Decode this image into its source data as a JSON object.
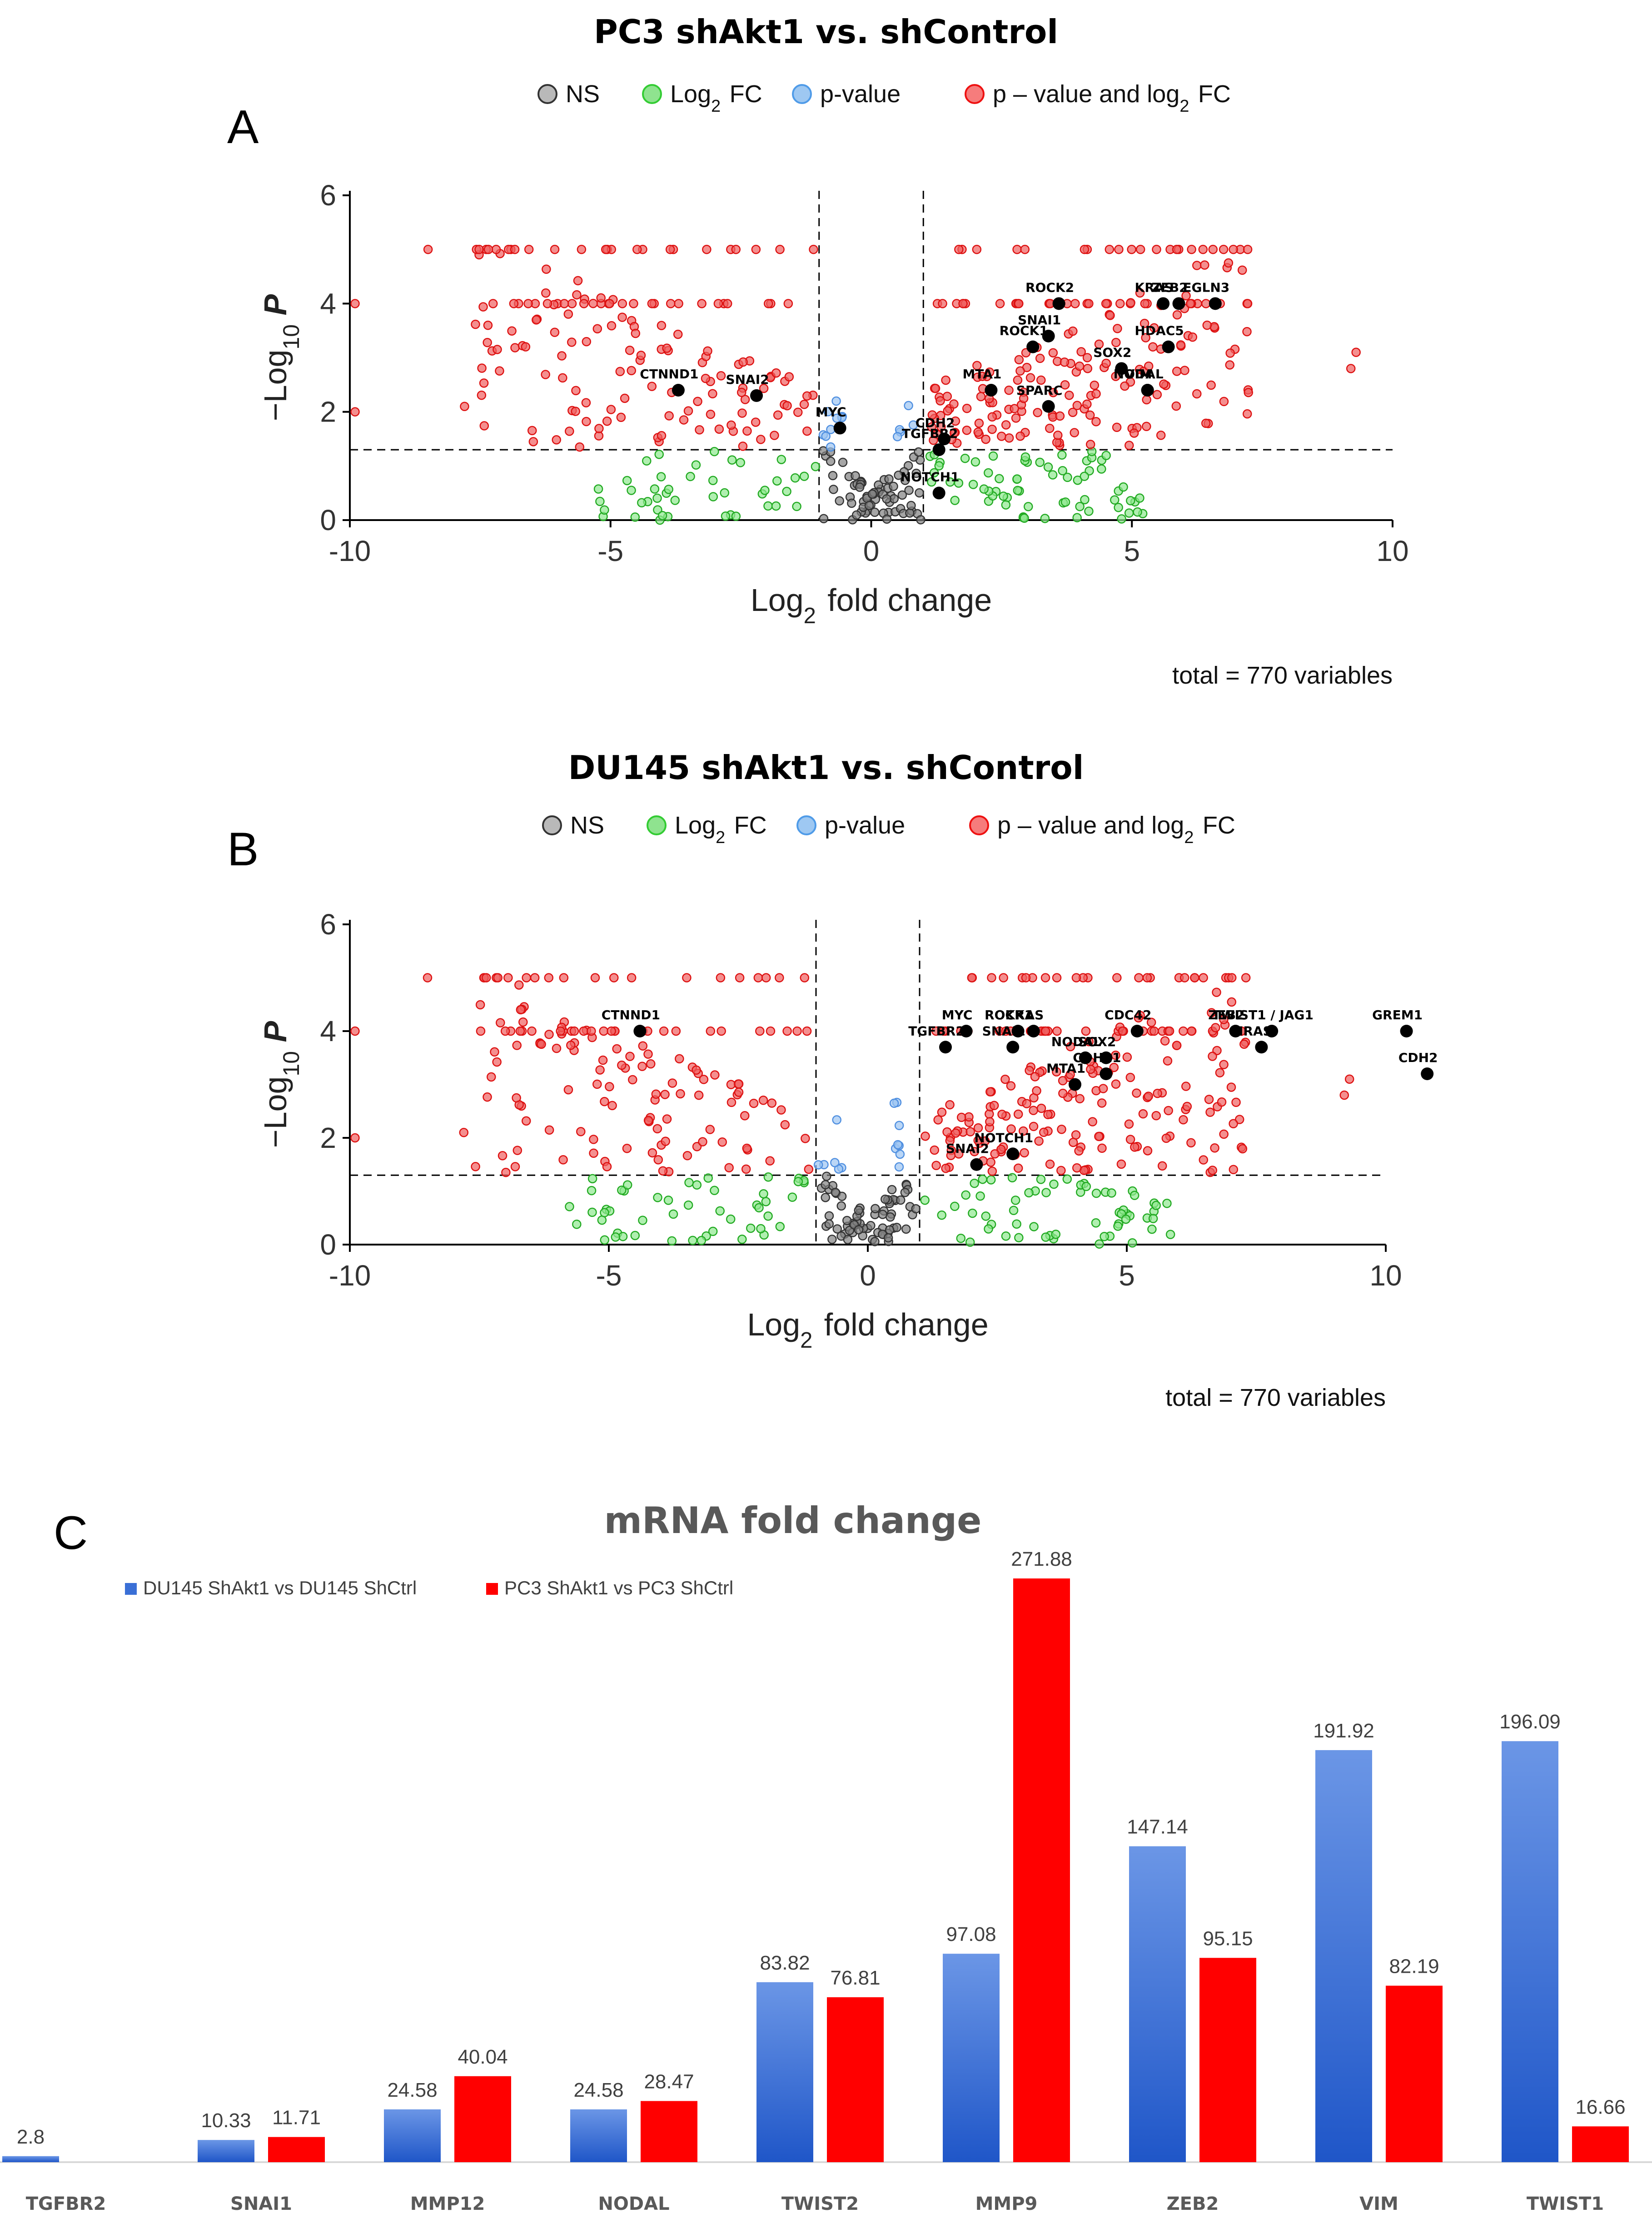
{
  "chart_data": [
    {
      "type": "scatter",
      "panel_label": "A",
      "title": "PC3 shAkt1 vs. shControl",
      "xlabel": "Log2 fold change",
      "ylabel": "-Log10 P",
      "xlim": [
        -10,
        10
      ],
      "ylim": [
        0,
        6
      ],
      "xticks": [
        -10,
        -5,
        0,
        5,
        10
      ],
      "yticks": [
        0,
        2,
        4,
        6
      ],
      "fc_cutoff": 1,
      "p_cutoff": 1.3,
      "legend": {
        "items": [
          {
            "label": "NS",
            "color": "#808080"
          },
          {
            "label": "Log2 FC",
            "color": "#33cc33"
          },
          {
            "label": "p-value",
            "color": "#4f9be8"
          },
          {
            "label": "p – value and log2 FC",
            "color": "#ee1111"
          }
        ]
      },
      "caption": "total = 770 variables",
      "highlighted_genes": [
        {
          "name": "ROCK2",
          "x": 3.6,
          "y": 4.0
        },
        {
          "name": "KRAS",
          "x": 5.6,
          "y": 4.0
        },
        {
          "name": "EGLN3",
          "x": 6.6,
          "y": 4.0
        },
        {
          "name": "ZEB2",
          "x": 5.9,
          "y": 4.0
        },
        {
          "name": "SNAI1",
          "x": 3.4,
          "y": 3.4
        },
        {
          "name": "HDAC5",
          "x": 5.7,
          "y": 3.2
        },
        {
          "name": "ROCK1",
          "x": 3.1,
          "y": 3.2
        },
        {
          "name": "SOX2",
          "x": 4.8,
          "y": 2.8
        },
        {
          "name": "MTA1",
          "x": 2.3,
          "y": 2.4
        },
        {
          "name": "NODAL",
          "x": 5.3,
          "y": 2.4
        },
        {
          "name": "SPARC",
          "x": 3.4,
          "y": 2.1
        },
        {
          "name": "VIM",
          "x": 5.3,
          "y": 2.4
        },
        {
          "name": "SNAI2",
          "x": -2.2,
          "y": 2.3
        },
        {
          "name": "CTNND1",
          "x": -3.7,
          "y": 2.4
        },
        {
          "name": "MYC",
          "x": -0.6,
          "y": 1.7
        },
        {
          "name": "CDH2",
          "x": 1.4,
          "y": 1.5
        },
        {
          "name": "TGFBR2",
          "x": 1.3,
          "y": 1.3
        },
        {
          "name": "NOTCH1",
          "x": 1.3,
          "y": 0.5
        }
      ]
    },
    {
      "type": "scatter",
      "panel_label": "B",
      "title": "DU145 shAkt1 vs. shControl",
      "xlabel": "Log2 fold change",
      "ylabel": "-Log10 P",
      "xlim": [
        -10,
        10
      ],
      "ylim": [
        0,
        6
      ],
      "xticks": [
        -10,
        -5,
        0,
        5,
        10
      ],
      "yticks": [
        0,
        2,
        4,
        6
      ],
      "fc_cutoff": 1,
      "p_cutoff": 1.3,
      "legend": {
        "items": [
          {
            "label": "NS",
            "color": "#808080"
          },
          {
            "label": "Log2 FC",
            "color": "#33cc33"
          },
          {
            "label": "p-value",
            "color": "#4f9be8"
          },
          {
            "label": "p – value and log2 FC",
            "color": "#ee1111"
          }
        ]
      },
      "caption": "total = 770 variables",
      "highlighted_genes": [
        {
          "name": "CTNND1",
          "x": -4.4,
          "y": 4.0
        },
        {
          "name": "MYC",
          "x": 1.9,
          "y": 4.0
        },
        {
          "name": "ROCK1",
          "x": 2.9,
          "y": 4.0
        },
        {
          "name": "KRAS",
          "x": 3.2,
          "y": 4.0
        },
        {
          "name": "CDC42",
          "x": 5.2,
          "y": 4.0
        },
        {
          "name": "TWIST1 / JAG1",
          "x": 7.8,
          "y": 4.0
        },
        {
          "name": "GREM1",
          "x": 10.4,
          "y": 4.0
        },
        {
          "name": "TGFBR2",
          "x": 1.5,
          "y": 3.7
        },
        {
          "name": "SNAI1",
          "x": 2.8,
          "y": 3.7
        },
        {
          "name": "NODAL",
          "x": 4.2,
          "y": 3.5
        },
        {
          "name": "ZEB2",
          "x": 7.1,
          "y": 4.0
        },
        {
          "name": "SOX2",
          "x": 4.6,
          "y": 3.5
        },
        {
          "name": "HRAS",
          "x": 7.6,
          "y": 3.7
        },
        {
          "name": "CDH2",
          "x": 10.8,
          "y": 3.2
        },
        {
          "name": "CDH11",
          "x": 4.6,
          "y": 3.2
        },
        {
          "name": "MTA1",
          "x": 4.0,
          "y": 3.0
        },
        {
          "name": "NOTCH1",
          "x": 2.8,
          "y": 1.7
        },
        {
          "name": "SNAI2",
          "x": 2.1,
          "y": 1.5
        }
      ]
    },
    {
      "type": "bar",
      "panel_label": "C",
      "title": "mRNA fold change",
      "categories": [
        "TGFBR2",
        "SNAI1",
        "MMP12",
        "NODAL",
        "TWIST2",
        "MMP9",
        "ZEB2",
        "VIM",
        "TWIST1"
      ],
      "series": [
        {
          "name": "DU145 ShAkt1 vs DU145 ShCtrl",
          "color": "#3a6fd6",
          "values": [
            2.8,
            10.33,
            24.58,
            24.58,
            83.82,
            97.08,
            147.14,
            191.92,
            196.09
          ],
          "labels": [
            "2.8",
            "10.33",
            "24.58",
            "24.58",
            "83.82",
            "97.08",
            "147.14",
            "191.92",
            "196.09"
          ]
        },
        {
          "name": "PC3 ShAkt1 vs PC3 ShCtrl",
          "color": "#ff0000",
          "values": [
            null,
            11.71,
            40.04,
            28.47,
            76.81,
            271.88,
            95.15,
            82.19,
            16.66
          ],
          "labels": [
            "",
            "11.71",
            "40.04",
            "28.47",
            "76.81",
            "271.88",
            "95.15",
            "82.19",
            "16.66"
          ]
        }
      ],
      "ylim": [
        0,
        280
      ],
      "legend": "top-left"
    }
  ]
}
